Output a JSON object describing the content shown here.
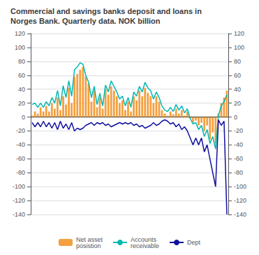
{
  "chart_data": {
    "type": "bar",
    "title": "Commercial and savings banks deposit and loans in\nNorges Bank. Quarterly data. NOK billion",
    "categories": [
      null,
      null,
      null,
      null,
      null,
      null,
      null,
      null,
      null,
      null,
      null,
      null,
      null,
      null,
      null,
      null,
      null,
      null,
      null,
      null,
      null,
      null,
      null,
      null,
      null,
      null,
      null,
      null,
      null,
      null,
      null,
      null,
      null,
      null,
      null,
      null,
      null,
      null,
      null,
      null,
      null,
      null,
      null,
      null,
      null,
      null,
      null,
      null,
      null,
      null,
      null,
      null,
      null,
      null,
      null,
      null,
      null,
      null,
      null,
      null,
      null,
      null,
      null,
      null,
      null,
      null,
      null,
      null,
      null,
      null
    ],
    "series": [
      {
        "name": "Net asset\nposistion",
        "type": "bar",
        "color": "#F4A040",
        "values": [
          2,
          8,
          5,
          14,
          8,
          16,
          8,
          20,
          12,
          28,
          10,
          30,
          18,
          42,
          20,
          58,
          62,
          68,
          72,
          58,
          48,
          22,
          38,
          14,
          28,
          12,
          40,
          32,
          44,
          38,
          30,
          20,
          24,
          10,
          22,
          8,
          30,
          24,
          38,
          30,
          42,
          35,
          30,
          20,
          30,
          22,
          10,
          5,
          2,
          8,
          4,
          12,
          5,
          10,
          2,
          8,
          -2,
          -8,
          -5,
          -12,
          -8,
          -20,
          -12,
          -32,
          -22,
          -38,
          5,
          20,
          28,
          38
        ]
      },
      {
        "name": "Accounts\nreceivable",
        "type": "line",
        "color": "#00B8B0",
        "values": [
          18,
          20,
          14,
          20,
          14,
          22,
          16,
          28,
          20,
          38,
          16,
          45,
          28,
          52,
          30,
          68,
          72,
          78,
          76,
          60,
          50,
          28,
          44,
          18,
          34,
          16,
          46,
          36,
          52,
          44,
          36,
          26,
          30,
          16,
          28,
          14,
          36,
          30,
          44,
          36,
          50,
          42,
          38,
          26,
          36,
          28,
          16,
          10,
          8,
          14,
          8,
          18,
          10,
          16,
          6,
          12,
          -2,
          -10,
          -8,
          -18,
          -12,
          -28,
          -18,
          -38,
          -28,
          -46,
          2,
          16,
          22,
          32
        ]
      },
      {
        "name": "Dept",
        "type": "line",
        "color": "#1010A0",
        "values": [
          -8,
          -14,
          -8,
          -14,
          -6,
          -14,
          -8,
          -16,
          -8,
          -18,
          -6,
          -16,
          -10,
          -18,
          -8,
          -20,
          -16,
          -18,
          -16,
          -12,
          -10,
          -8,
          -12,
          -8,
          -10,
          -8,
          -12,
          -10,
          -14,
          -12,
          -10,
          -8,
          -10,
          -8,
          -10,
          -8,
          -12,
          -10,
          -14,
          -12,
          -16,
          -14,
          -12,
          -8,
          -12,
          -10,
          -6,
          -4,
          -6,
          -10,
          -8,
          -14,
          -10,
          -18,
          -14,
          -20,
          -30,
          -40,
          -30,
          -40,
          -30,
          -50,
          -40,
          -60,
          -80,
          -100,
          -4,
          -12,
          -6,
          -140
        ]
      }
    ],
    "ylim": [
      -140,
      120
    ],
    "yticks": [
      -140,
      -120,
      -100,
      -80,
      -60,
      -40,
      -20,
      0,
      20,
      40,
      60,
      80,
      100,
      120
    ],
    "y2lim": [
      -140,
      120
    ],
    "y2ticks": [
      -140,
      -120,
      -100,
      -80,
      -60,
      -40,
      -20,
      0,
      20,
      40,
      60,
      80,
      100,
      120
    ],
    "grid": true,
    "legend": "bottom",
    "tick_labels": "y"
  }
}
